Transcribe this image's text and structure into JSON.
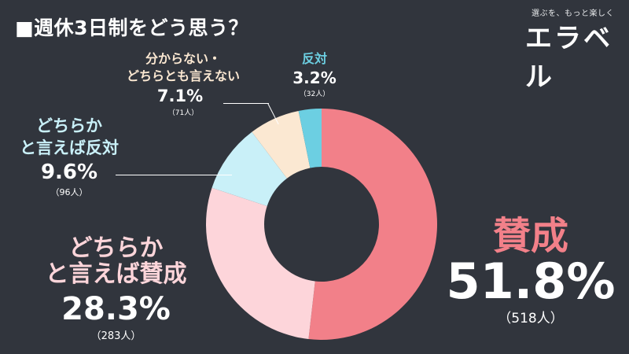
{
  "header": {
    "title": "■週休3日制をどう思う？"
  },
  "logo": {
    "tagline": "選ぶを、もっと楽しく",
    "brand": "エラベル"
  },
  "colors": {
    "background": "#31353d",
    "agree": "#f28089",
    "somewhat_agree": "#fdd5da",
    "somewhat_disagree": "#c9f0f8",
    "unsure": "#fbe8d2",
    "disagree": "#6ccfe2"
  },
  "labels": {
    "agree": {
      "name": "賛成",
      "pct": "51.8%",
      "count": "（518人）"
    },
    "somewhat_agree": {
      "name_line1": "どちらか",
      "name_line2": "と言えば賛成",
      "pct": "28.3%",
      "count": "（283人）"
    },
    "somewhat_disagree": {
      "name_line1": "どちらか",
      "name_line2": "と言えば反対",
      "pct": "9.6%",
      "count": "（96人）"
    },
    "unsure": {
      "name_line1": "分からない・",
      "name_line2": "どちらとも言えない",
      "pct": "7.1%",
      "count": "（71人）"
    },
    "disagree": {
      "name": "反対",
      "pct": "3.2%",
      "count": "（32人）"
    }
  },
  "chart_data": {
    "type": "pie",
    "subtype": "donut",
    "title": "■週休3日制をどう思う？",
    "categories": [
      "賛成",
      "どちらかと言えば賛成",
      "どちらかと言えば反対",
      "分からない・どちらとも言えない",
      "反対"
    ],
    "values": [
      51.8,
      28.3,
      9.6,
      7.1,
      3.2
    ],
    "counts": [
      518,
      283,
      96,
      71,
      32
    ],
    "unit": "%",
    "start_angle": "12 o'clock, clockwise",
    "colors": [
      "#f28089",
      "#fdd5da",
      "#c9f0f8",
      "#fbe8d2",
      "#6ccfe2"
    ],
    "legend": "none (direct labels)"
  }
}
